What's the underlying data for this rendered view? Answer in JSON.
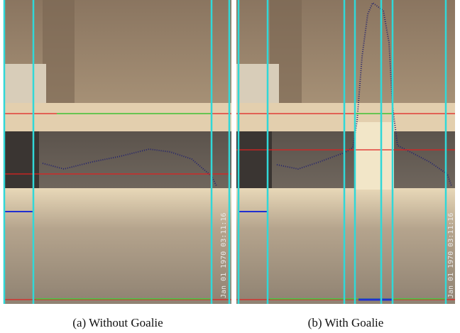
{
  "panels": [
    {
      "caption": "(a) Without Goalie",
      "timestamp": "Jan 01 1970 03:11:16"
    },
    {
      "caption": "(b) With Goalie",
      "timestamp": "Jan 01 1970 03:11:16"
    }
  ]
}
